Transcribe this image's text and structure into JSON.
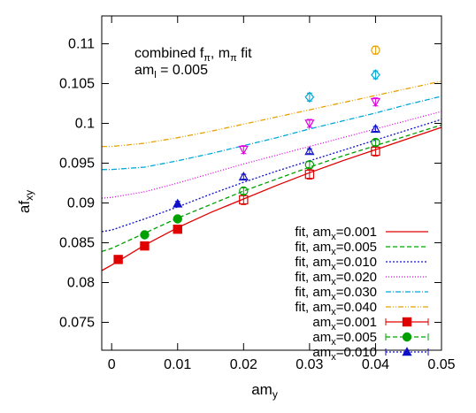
{
  "chart_data": {
    "type": "scatter",
    "title": "",
    "xlabel": "am",
    "xlabel_sub": "y",
    "ylabel": "af",
    "ylabel_sub": "xy",
    "xlim": [
      -0.0015,
      0.05
    ],
    "ylim": [
      0.0715,
      0.1135
    ],
    "xticks": [
      0,
      0.01,
      0.02,
      0.03,
      0.04,
      0.05
    ],
    "xtick_labels": [
      "0",
      "0.01",
      "0.02",
      "0.03",
      "0.04",
      "0.05"
    ],
    "yticks": [
      0.075,
      0.08,
      0.085,
      0.09,
      0.095,
      0.1,
      0.105,
      0.11
    ],
    "ytick_labels": [
      "0.075",
      "0.08",
      "0.085",
      "0.09",
      "0.095",
      "0.1",
      "0.105",
      "0.11"
    ],
    "grid": false,
    "legend_position": "bottom-right",
    "annotation": {
      "line1_a": "combined f",
      "line1_sub_a": "π",
      "line1_b": ", m",
      "line1_sub_b": "π",
      "line1_c": " fit",
      "line2_a": "am",
      "line2_sub": "l",
      "line2_b": " = 0.005"
    },
    "fit_curves": [
      {
        "label": "fit, am",
        "sub": "x",
        "suffix": "=0.001",
        "color": "#e00000",
        "dash": "",
        "x": [
          -0.0015,
          0.0,
          0.005,
          0.01,
          0.015,
          0.02,
          0.025,
          0.03,
          0.035,
          0.04,
          0.045,
          0.05
        ],
        "y": [
          0.0815,
          0.0822,
          0.0847,
          0.0869,
          0.0888,
          0.0905,
          0.0922,
          0.0938,
          0.0953,
          0.0967,
          0.0981,
          0.0995
        ]
      },
      {
        "label": "fit, am",
        "sub": "x",
        "suffix": "=0.005",
        "color": "#00a000",
        "dash": "5,3",
        "x": [
          -0.0015,
          0.0,
          0.005,
          0.01,
          0.015,
          0.02,
          0.025,
          0.03,
          0.035,
          0.04,
          0.045,
          0.05
        ],
        "y": [
          0.0839,
          0.0843,
          0.0862,
          0.0881,
          0.0898,
          0.0915,
          0.093,
          0.0945,
          0.0959,
          0.0972,
          0.0985,
          0.0998
        ]
      },
      {
        "label": "fit, am",
        "sub": "x",
        "suffix": "=0.010",
        "color": "#1010c8",
        "dash": "2,2",
        "x": [
          -0.0015,
          0.0,
          0.005,
          0.01,
          0.015,
          0.02,
          0.025,
          0.03,
          0.035,
          0.04,
          0.045,
          0.05
        ],
        "y": [
          0.0864,
          0.0866,
          0.088,
          0.0895,
          0.0911,
          0.0926,
          0.094,
          0.0953,
          0.0966,
          0.0979,
          0.0992,
          0.1005
        ]
      },
      {
        "label": "fit, am",
        "sub": "x",
        "suffix": "=0.020",
        "color": "#e000e0",
        "dash": "1,2",
        "x": [
          -0.0015,
          0.0,
          0.005,
          0.01,
          0.015,
          0.02,
          0.025,
          0.03,
          0.035,
          0.04,
          0.045,
          0.05
        ],
        "y": [
          0.0906,
          0.0907,
          0.0914,
          0.0925,
          0.0937,
          0.0949,
          0.096,
          0.0971,
          0.0982,
          0.0993,
          0.1004,
          0.1015
        ]
      },
      {
        "label": "fit, am",
        "sub": "x",
        "suffix": "=0.030",
        "color": "#00a8d8",
        "dash": "6,2,1,2",
        "x": [
          -0.0015,
          0.0,
          0.005,
          0.01,
          0.015,
          0.02,
          0.025,
          0.03,
          0.035,
          0.04,
          0.045,
          0.05
        ],
        "y": [
          0.0942,
          0.0942,
          0.0945,
          0.0953,
          0.0962,
          0.0972,
          0.0982,
          0.0993,
          0.1003,
          0.1013,
          0.1024,
          0.1034
        ]
      },
      {
        "label": "fit, am",
        "sub": "x",
        "suffix": "=0.040",
        "color": "#e8a000",
        "dash": "6,2,1,2,1,2",
        "x": [
          -0.0015,
          0.0,
          0.005,
          0.01,
          0.015,
          0.02,
          0.025,
          0.03,
          0.035,
          0.04,
          0.045,
          0.05
        ],
        "y": [
          0.0971,
          0.0971,
          0.0975,
          0.0982,
          0.099,
          0.0999,
          0.1008,
          0.1017,
          0.1026,
          0.1035,
          0.1044,
          0.1053
        ]
      }
    ],
    "series": [
      {
        "label": "am",
        "sub": "x",
        "suffix": "=0.001",
        "color": "#e00000",
        "marker": "square-filled",
        "in_legend": true,
        "dash": "",
        "points": [
          [
            0.001,
            0.0829,
            0.0004
          ],
          [
            0.005,
            0.0846,
            0.0004
          ],
          [
            0.01,
            0.0867,
            0.0004
          ]
        ]
      },
      {
        "label": "am",
        "sub": "x",
        "suffix": "=0.005",
        "color": "#00a000",
        "marker": "circle-filled",
        "in_legend": true,
        "dash": "5,3",
        "points": [
          [
            0.005,
            0.086,
            0.0004
          ],
          [
            0.01,
            0.088,
            0.0004
          ]
        ]
      },
      {
        "label": "am",
        "sub": "x",
        "suffix": "=0.010",
        "color": "#1010c8",
        "marker": "triangle-filled",
        "in_legend": true,
        "dash": "2,2",
        "points": [
          [
            0.01,
            0.0899,
            0.0003
          ]
        ]
      },
      {
        "label": "",
        "sub": "",
        "suffix": "",
        "color": "#e00000",
        "marker": "square-open",
        "in_legend": false,
        "dash": "",
        "points": [
          [
            0.02,
            0.0904,
            0.0006
          ],
          [
            0.03,
            0.0936,
            0.0006
          ],
          [
            0.04,
            0.0965,
            0.0006
          ]
        ]
      },
      {
        "label": "",
        "sub": "",
        "suffix": "",
        "color": "#00a000",
        "marker": "circle-open",
        "in_legend": false,
        "dash": "",
        "points": [
          [
            0.02,
            0.0915,
            0.0004
          ],
          [
            0.03,
            0.0948,
            0.0004
          ],
          [
            0.04,
            0.0976,
            0.0004
          ]
        ]
      },
      {
        "label": "",
        "sub": "",
        "suffix": "",
        "color": "#1010c8",
        "marker": "triangle-open",
        "in_legend": false,
        "dash": "",
        "points": [
          [
            0.02,
            0.0933,
            0.0003
          ],
          [
            0.03,
            0.0965,
            0.0003
          ],
          [
            0.04,
            0.0993,
            0.0003
          ]
        ]
      },
      {
        "label": "",
        "sub": "",
        "suffix": "",
        "color": "#e000e0",
        "marker": "triangle-down-open",
        "in_legend": false,
        "dash": "",
        "points": [
          [
            0.02,
            0.0967,
            0.0005
          ],
          [
            0.03,
            0.1,
            0.0005
          ],
          [
            0.04,
            0.1027,
            0.0005
          ]
        ]
      },
      {
        "label": "",
        "sub": "",
        "suffix": "",
        "color": "#00a8d8",
        "marker": "diamond-open",
        "in_legend": false,
        "dash": "",
        "points": [
          [
            0.03,
            0.1033,
            0.0005
          ],
          [
            0.04,
            0.1061,
            0.0005
          ]
        ]
      },
      {
        "label": "",
        "sub": "",
        "suffix": "",
        "color": "#e8a000",
        "marker": "circle-open",
        "in_legend": false,
        "dash": "",
        "points": [
          [
            0.04,
            0.1092,
            0.0005
          ]
        ]
      }
    ]
  }
}
